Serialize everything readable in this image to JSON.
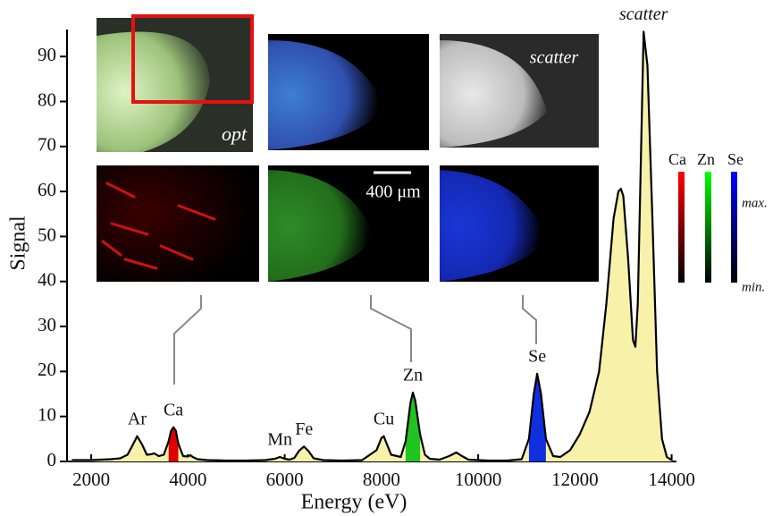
{
  "chart_data": {
    "type": "area",
    "x_label": "Energy (eV)",
    "y_label": "Signal",
    "xlim": [
      1500,
      14100
    ],
    "ylim": [
      0,
      96
    ],
    "xticks": [
      2000,
      4000,
      6000,
      8000,
      10000,
      12000,
      14000
    ],
    "yticks": [
      0,
      10,
      20,
      30,
      40,
      50,
      60,
      70,
      80,
      90
    ],
    "spectrum": {
      "color": "#f8f1aa",
      "line_color": "#000000",
      "x": [
        1600,
        1800,
        2000,
        2200,
        2400,
        2600,
        2750,
        2850,
        2950,
        3050,
        3150,
        3250,
        3300,
        3400,
        3500,
        3600,
        3650,
        3700,
        3750,
        3800,
        3900,
        4000,
        4050,
        4100,
        4200,
        4400,
        4800,
        5200,
        5600,
        5800,
        5900,
        6000,
        6100,
        6200,
        6300,
        6400,
        6500,
        6600,
        6800,
        7200,
        7600,
        7900,
        8000,
        8050,
        8100,
        8200,
        8400,
        8500,
        8600,
        8650,
        8700,
        8800,
        8900,
        9000,
        9200,
        9400,
        9550,
        9650,
        9800,
        10200,
        10600,
        10900,
        11050,
        11150,
        11220,
        11300,
        11400,
        11550,
        11700,
        11900,
        12100,
        12300,
        12500,
        12650,
        12800,
        12900,
        12950,
        13000,
        13100,
        13200,
        13250,
        13300,
        13350,
        13420,
        13500,
        13600,
        13700,
        13800,
        13900,
        14000
      ],
      "values": [
        0.3,
        0.3,
        0.3,
        0.4,
        0.5,
        0.7,
        1.5,
        3.5,
        5.6,
        3.8,
        1.5,
        1.6,
        1.8,
        1.2,
        1.5,
        4.5,
        6.8,
        7.6,
        6.8,
        4,
        1.2,
        1.1,
        1.4,
        1.0,
        0.5,
        0.3,
        0.2,
        0.2,
        0.3,
        0.6,
        1.0,
        0.6,
        0.4,
        0.8,
        2.4,
        3.3,
        2.2,
        0.7,
        0.3,
        0.2,
        0.3,
        2.5,
        5.2,
        5.6,
        4.2,
        1.5,
        1.0,
        4.5,
        13,
        15.3,
        13.5,
        6,
        1.5,
        0.6,
        0.4,
        1.2,
        2.0,
        1.3,
        0.4,
        0.2,
        0.2,
        0.5,
        5,
        15,
        19.5,
        15,
        5,
        1.2,
        1.0,
        2.5,
        6,
        11,
        20,
        35,
        54,
        60,
        60.6,
        59,
        45,
        27,
        25.5,
        35,
        60,
        95.5,
        88,
        55,
        20,
        5,
        1,
        0.3
      ]
    },
    "highlights": [
      {
        "name": "Ca",
        "color": "#e00000",
        "x": [
          3600,
          3650,
          3700,
          3750,
          3800
        ],
        "values": [
          4.5,
          6.8,
          7.6,
          6.8,
          4
        ]
      },
      {
        "name": "Zn",
        "color": "#1fc41f",
        "x": [
          8500,
          8600,
          8650,
          8700,
          8800
        ],
        "values": [
          4.5,
          13,
          15.3,
          13.5,
          6
        ]
      },
      {
        "name": "Se",
        "color": "#1030e0",
        "x": [
          11050,
          11150,
          11220,
          11300,
          11400
        ],
        "values": [
          5,
          15,
          19.5,
          15,
          5
        ]
      }
    ],
    "annotations": [
      {
        "text": "Ar",
        "x": 2950
      },
      {
        "text": "Ca",
        "x": 3700
      },
      {
        "text": "Mn",
        "x": 5900
      },
      {
        "text": "Fe",
        "x": 6400
      },
      {
        "text": "Cu",
        "x": 8050
      },
      {
        "text": "Zn",
        "x": 8650
      },
      {
        "text": "Se",
        "x": 11220
      },
      {
        "text": "scatter",
        "x": 13420,
        "italic": true
      }
    ],
    "image_labels": [
      "opt",
      "scatter"
    ],
    "scale_bar": "400 μm",
    "colorbar": {
      "labels": [
        "Ca",
        "Zn",
        "Se"
      ],
      "max": "max.",
      "min": "min."
    }
  }
}
